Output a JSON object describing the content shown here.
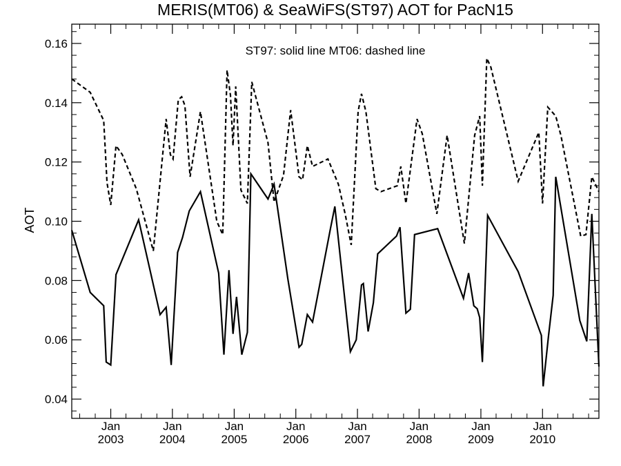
{
  "chart_data": {
    "type": "line",
    "title": "MERIS(MT06) & SeaWiFS(ST97)  AOT for PacN15",
    "legend_text": "ST97: solid line   MT06: dashed line",
    "xlabel": "",
    "ylabel": "AOT",
    "x_axis": "date",
    "xlim": [
      "2002-05-15",
      "2010-12-01"
    ],
    "ylim": [
      0.0335,
      0.1665
    ],
    "grid": false,
    "y_ticks": [
      "0.04",
      "0.06",
      "0.08",
      "0.10",
      "0.12",
      "0.14",
      "0.16"
    ],
    "x_ticks": [
      {
        "date": "2003-01-01",
        "month": "Jan",
        "year": "2003"
      },
      {
        "date": "2004-01-01",
        "month": "Jan",
        "year": "2004"
      },
      {
        "date": "2005-01-01",
        "month": "Jan",
        "year": "2005"
      },
      {
        "date": "2006-01-01",
        "month": "Jan",
        "year": "2006"
      },
      {
        "date": "2007-01-01",
        "month": "Jan",
        "year": "2007"
      },
      {
        "date": "2008-01-01",
        "month": "Jan",
        "year": "2008"
      },
      {
        "date": "2009-01-01",
        "month": "Jan",
        "year": "2009"
      },
      {
        "date": "2010-01-01",
        "month": "Jan",
        "year": "2010"
      }
    ],
    "series": [
      {
        "name": "ST97",
        "style": "solid",
        "color": "#000000",
        "points": [
          [
            "2002-05-15",
            0.097
          ],
          [
            "2002-09-01",
            0.076
          ],
          [
            "2002-11-20",
            0.0715
          ],
          [
            "2002-12-05",
            0.0525
          ],
          [
            "2003-01-01",
            0.0515
          ],
          [
            "2003-02-01",
            0.082
          ],
          [
            "2003-06-15",
            0.1005
          ],
          [
            "2003-10-20",
            0.0685
          ],
          [
            "2003-11-25",
            0.071
          ],
          [
            "2003-12-25",
            0.0515
          ],
          [
            "2004-02-01",
            0.0895
          ],
          [
            "2004-03-01",
            0.0945
          ],
          [
            "2004-04-10",
            0.1035
          ],
          [
            "2004-06-15",
            0.11
          ],
          [
            "2004-10-01",
            0.0825
          ],
          [
            "2004-11-01",
            0.055
          ],
          [
            "2004-12-01",
            0.0835
          ],
          [
            "2004-12-25",
            0.062
          ],
          [
            "2005-01-15",
            0.0745
          ],
          [
            "2005-02-15",
            0.055
          ],
          [
            "2005-03-20",
            0.0625
          ],
          [
            "2005-04-10",
            0.116
          ],
          [
            "2005-07-20",
            0.1075
          ],
          [
            "2005-08-25",
            0.1125
          ],
          [
            "2005-11-15",
            0.0805
          ],
          [
            "2006-01-20",
            0.0575
          ],
          [
            "2006-02-05",
            0.0585
          ],
          [
            "2006-03-10",
            0.0685
          ],
          [
            "2006-04-10",
            0.066
          ],
          [
            "2006-07-25",
            0.0975
          ],
          [
            "2006-08-20",
            0.105
          ],
          [
            "2006-11-20",
            0.056
          ],
          [
            "2006-12-25",
            0.06
          ],
          [
            "2007-01-25",
            0.0785
          ],
          [
            "2007-02-05",
            0.079
          ],
          [
            "2007-03-05",
            0.0628
          ],
          [
            "2007-04-05",
            0.0725
          ],
          [
            "2007-05-01",
            0.089
          ],
          [
            "2007-08-20",
            0.095
          ],
          [
            "2007-09-10",
            0.098
          ],
          [
            "2007-10-15",
            0.069
          ],
          [
            "2007-11-10",
            0.0703
          ],
          [
            "2007-12-05",
            0.0955
          ],
          [
            "2008-04-20",
            0.0975
          ],
          [
            "2008-09-20",
            0.074
          ],
          [
            "2008-10-20",
            0.0825
          ],
          [
            "2008-11-20",
            0.0715
          ],
          [
            "2008-12-10",
            0.0705
          ],
          [
            "2008-12-25",
            0.0675
          ],
          [
            "2009-01-10",
            0.0525
          ],
          [
            "2009-02-10",
            0.102
          ],
          [
            "2009-08-10",
            0.083
          ],
          [
            "2009-12-25",
            0.0615
          ],
          [
            "2010-01-05",
            0.0443
          ],
          [
            "2010-02-05",
            0.061
          ],
          [
            "2010-03-05",
            0.075
          ],
          [
            "2010-03-20",
            0.115
          ],
          [
            "2010-08-10",
            0.0665
          ],
          [
            "2010-09-20",
            0.0595
          ],
          [
            "2010-10-20",
            0.1025
          ],
          [
            "2010-12-01",
            0.051
          ]
        ]
      },
      {
        "name": "MT06",
        "style": "dashed",
        "color": "#000000",
        "points": [
          [
            "2002-05-15",
            0.148
          ],
          [
            "2002-09-01",
            0.1435
          ],
          [
            "2002-11-20",
            0.134
          ],
          [
            "2002-12-10",
            0.113
          ],
          [
            "2003-01-01",
            0.1055
          ],
          [
            "2003-02-01",
            0.1255
          ],
          [
            "2003-03-10",
            0.1225
          ],
          [
            "2003-06-01",
            0.111
          ],
          [
            "2003-09-10",
            0.09
          ],
          [
            "2003-11-25",
            0.1345
          ],
          [
            "2003-12-20",
            0.1225
          ],
          [
            "2004-01-05",
            0.121
          ],
          [
            "2004-02-05",
            0.141
          ],
          [
            "2004-02-25",
            0.142
          ],
          [
            "2004-03-15",
            0.139
          ],
          [
            "2004-04-15",
            0.115
          ],
          [
            "2004-06-15",
            0.137
          ],
          [
            "2004-09-20",
            0.1
          ],
          [
            "2004-10-25",
            0.0955
          ],
          [
            "2004-11-20",
            0.151
          ],
          [
            "2004-12-10",
            0.1425
          ],
          [
            "2004-12-25",
            0.1255
          ],
          [
            "2005-01-10",
            0.1455
          ],
          [
            "2005-02-10",
            0.1105
          ],
          [
            "2005-03-20",
            0.106
          ],
          [
            "2005-04-15",
            0.147
          ],
          [
            "2005-07-20",
            0.1265
          ],
          [
            "2005-08-25",
            0.1065
          ],
          [
            "2005-10-20",
            0.1155
          ],
          [
            "2005-12-01",
            0.1375
          ],
          [
            "2006-01-20",
            0.115
          ],
          [
            "2006-02-10",
            0.114
          ],
          [
            "2006-03-10",
            0.1255
          ],
          [
            "2006-04-10",
            0.1185
          ],
          [
            "2006-07-10",
            0.121
          ],
          [
            "2006-09-10",
            0.1125
          ],
          [
            "2006-10-20",
            0.1025
          ],
          [
            "2006-11-25",
            0.092
          ],
          [
            "2007-01-05",
            0.137
          ],
          [
            "2007-01-25",
            0.143
          ],
          [
            "2007-02-20",
            0.137
          ],
          [
            "2007-04-20",
            0.111
          ],
          [
            "2007-05-20",
            0.11
          ],
          [
            "2007-08-25",
            0.112
          ],
          [
            "2007-09-15",
            0.1185
          ],
          [
            "2007-10-15",
            0.106
          ],
          [
            "2007-12-20",
            0.1345
          ],
          [
            "2008-01-20",
            0.1295
          ],
          [
            "2008-04-15",
            0.1025
          ],
          [
            "2008-06-15",
            0.129
          ],
          [
            "2008-09-25",
            0.0925
          ],
          [
            "2008-11-25",
            0.129
          ],
          [
            "2008-12-25",
            0.1355
          ],
          [
            "2009-01-10",
            0.112
          ],
          [
            "2009-02-05",
            0.155
          ],
          [
            "2009-03-01",
            0.152
          ],
          [
            "2009-08-10",
            0.1135
          ],
          [
            "2009-12-10",
            0.13
          ],
          [
            "2010-01-01",
            0.106
          ],
          [
            "2010-02-01",
            0.1385
          ],
          [
            "2010-03-20",
            0.1355
          ],
          [
            "2010-04-20",
            0.129
          ],
          [
            "2010-08-15",
            0.095
          ],
          [
            "2010-09-15",
            0.0955
          ],
          [
            "2010-10-20",
            0.115
          ],
          [
            "2010-12-01",
            0.11
          ]
        ]
      }
    ]
  }
}
